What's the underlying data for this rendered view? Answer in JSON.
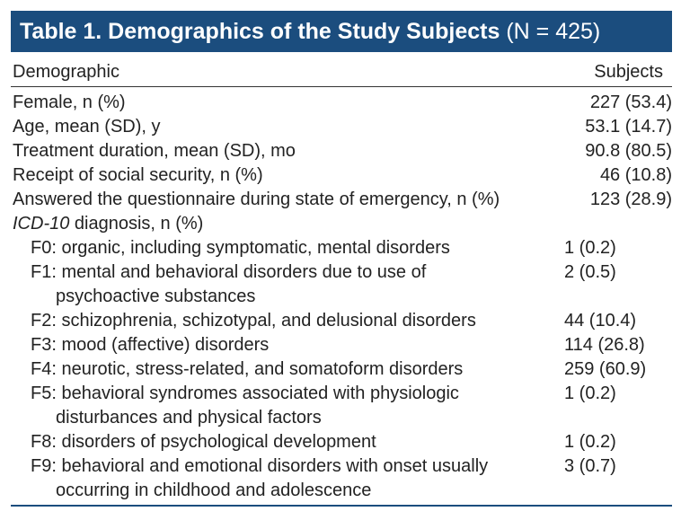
{
  "title": {
    "main": "Table 1. Demographics of the Study Subjects",
    "n": "(N = 425)"
  },
  "columns": [
    "Demographic",
    "Subjects"
  ],
  "rows": [
    {
      "label": "Female, n (%)",
      "value": "227 (53.4)"
    },
    {
      "label": "Age, mean (SD), y",
      "value": "53.1 (14.7)"
    },
    {
      "label": "Treatment duration, mean (SD), mo",
      "value": "90.8 (80.5)"
    },
    {
      "label": "Receipt of social security, n (%)",
      "value": "46 (10.8)"
    },
    {
      "label": "Answered the questionnaire during state of emergency, n (%)",
      "value": "123 (28.9)"
    }
  ],
  "diagnosis": {
    "label_italic": "ICD-10",
    "label": "diagnosis, n (%)",
    "rows": [
      {
        "lines": [
          "F0: organic, including symptomatic, mental disorders"
        ],
        "value": "1 (0.2)"
      },
      {
        "lines": [
          "F1: mental and behavioral disorders due to use of",
          "psychoactive substances"
        ],
        "value": "2 (0.5)"
      },
      {
        "lines": [
          "F2: schizophrenia, schizotypal, and delusional disorders"
        ],
        "value": "44 (10.4)"
      },
      {
        "lines": [
          "F3: mood (affective) disorders"
        ],
        "value": "114 (26.8)"
      },
      {
        "lines": [
          "F4: neurotic, stress-related, and somatoform disorders"
        ],
        "value": "259 (60.9)"
      },
      {
        "lines": [
          "F5: behavioral syndromes associated with physiologic",
          "disturbances and physical factors"
        ],
        "value": "1 (0.2)"
      },
      {
        "lines": [
          "F8: disorders of psychological development"
        ],
        "value": "1 (0.2)"
      },
      {
        "lines": [
          "F9: behavioral and emotional disorders with onset usually",
          "occurring in childhood and adolescence"
        ],
        "value": "3 (0.7)"
      }
    ]
  }
}
